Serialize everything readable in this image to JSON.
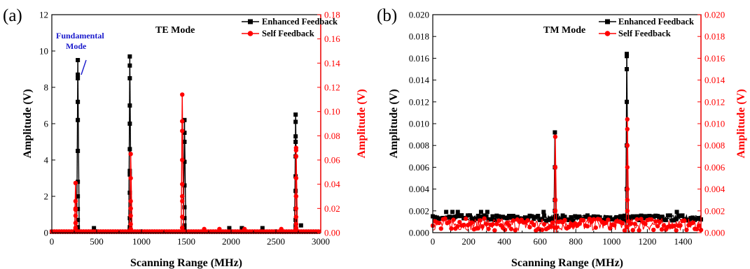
{
  "colors": {
    "left_axis": "#000000",
    "right_axis": "#ff0000",
    "annotation": "#1a1acc"
  },
  "chart_data": [
    {
      "type": "line",
      "panel_label": "(a)",
      "mode_title": "TE Mode",
      "annotation": {
        "line1": "Fundamental",
        "line2": "Mode"
      },
      "xlabel": "Scanning Range (MHz)",
      "ylabel_left": "Amplitude (V)",
      "ylabel_right": "Amplitude (V)",
      "xlim": [
        0,
        3000
      ],
      "ylim_left": [
        0,
        12
      ],
      "ylim_right": [
        0,
        0.18
      ],
      "xticks": [
        "0",
        "500",
        "1000",
        "1500",
        "2000",
        "2500",
        "3000"
      ],
      "yticks_left": [
        "0",
        "2",
        "4",
        "6",
        "8",
        "10",
        "12"
      ],
      "yticks_right": [
        "0.00",
        "0.02",
        "0.04",
        "0.06",
        "0.08",
        "0.10",
        "0.12",
        "0.14",
        "0.16",
        "0.18"
      ],
      "legend_position": "top-right",
      "series": [
        {
          "name": "Enhanced Feedback",
          "axis": "left",
          "color": "#000000",
          "marker": "square",
          "baseline": 0.05,
          "peaks": [
            {
              "x": 290,
              "points": [
                0.15,
                0.7,
                1.3,
                2.8,
                4.5,
                6.2,
                7.2,
                8.7,
                9.5,
                8.5,
                2.0,
                0.3
              ]
            },
            {
              "x": 870,
              "points": [
                0.2,
                0.8,
                2.2,
                3.4,
                4.6,
                6.0,
                7.0,
                8.5,
                9.2,
                9.7,
                3.2,
                0.3
              ]
            },
            {
              "x": 1480,
              "points": [
                0.2,
                0.8,
                1.4,
                2.6,
                3.9,
                5.5,
                6.2,
                5.0,
                0.4
              ]
            },
            {
              "x": 2720,
              "points": [
                0.2,
                0.7,
                1.3,
                2.3,
                3.1,
                4.2,
                5.3,
                6.1,
                6.5,
                5.0,
                0.4
              ]
            }
          ],
          "extra_points": [
            {
              "x": 470,
              "y": 0.25
            },
            {
              "x": 1980,
              "y": 0.25
            },
            {
              "x": 2120,
              "y": 0.25
            },
            {
              "x": 2350,
              "y": 0.25
            },
            {
              "x": 2780,
              "y": 0.4
            }
          ]
        },
        {
          "name": "Self Feedback",
          "axis": "right",
          "color": "#ff0000",
          "marker": "circle",
          "baseline": 0.001,
          "peaks": [
            {
              "x": 265,
              "points": [
                0.003,
                0.008,
                0.014,
                0.019,
                0.026,
                0.041,
                0.02,
                0.004
              ]
            },
            {
              "x": 880,
              "points": [
                0.003,
                0.007,
                0.014,
                0.02,
                0.026,
                0.045,
                0.065,
                0.02,
                0.003
              ]
            },
            {
              "x": 1455,
              "points": [
                0.004,
                0.013,
                0.026,
                0.04,
                0.06,
                0.084,
                0.092,
                0.114,
                0.03,
                0.004
              ]
            },
            {
              "x": 2725,
              "points": [
                0.003,
                0.007,
                0.013,
                0.02,
                0.03,
                0.045,
                0.063,
                0.07,
                0.068,
                0.03,
                0.004
              ]
            }
          ],
          "extra_points": [
            {
              "x": 1700,
              "y": 0.003
            },
            {
              "x": 1870,
              "y": 0.003
            },
            {
              "x": 2150,
              "y": 0.003
            },
            {
              "x": 2560,
              "y": 0.003
            }
          ]
        }
      ]
    },
    {
      "type": "line",
      "panel_label": "(b)",
      "mode_title": "TM Mode",
      "xlabel": "Scanning Range (MHz)",
      "ylabel_left": "Amplitude (V)",
      "ylabel_right": "Amplitude (V)",
      "xlim": [
        0,
        1500
      ],
      "ylim_left": [
        0,
        0.02
      ],
      "ylim_right": [
        0,
        0.02
      ],
      "xticks": [
        "0",
        "200",
        "400",
        "600",
        "800",
        "1000",
        "1200",
        "1400"
      ],
      "yticks_left": [
        "0.000",
        "0.002",
        "0.004",
        "0.006",
        "0.008",
        "0.010",
        "0.012",
        "0.014",
        "0.016",
        "0.018",
        "0.020"
      ],
      "yticks_right": [
        "0.000",
        "0.002",
        "0.004",
        "0.006",
        "0.008",
        "0.010",
        "0.012",
        "0.014",
        "0.016",
        "0.018",
        "0.020"
      ],
      "legend_position": "top-right",
      "series": [
        {
          "name": "Enhanced Feedback",
          "axis": "left",
          "color": "#000000",
          "marker": "square",
          "noise_band": [
            0.0011,
            0.0016
          ],
          "peaks": [
            {
              "x": 683,
              "points": [
                0.003,
                0.006,
                0.0092,
                0.002
              ]
            },
            {
              "x": 1085,
              "points": [
                0.004,
                0.008,
                0.012,
                0.015,
                0.0162,
                0.0164,
                0.004
              ]
            }
          ],
          "extra_points": [
            {
              "x": 75,
              "y": 0.0019
            },
            {
              "x": 110,
              "y": 0.0019
            },
            {
              "x": 140,
              "y": 0.0019
            },
            {
              "x": 270,
              "y": 0.0019
            },
            {
              "x": 305,
              "y": 0.0019
            },
            {
              "x": 620,
              "y": 0.0019
            },
            {
              "x": 1365,
              "y": 0.0019
            }
          ]
        },
        {
          "name": "Self Feedback",
          "axis": "right",
          "color": "#ff0000",
          "marker": "circle",
          "noise_band": [
            0.0002,
            0.0013
          ],
          "peaks": [
            {
              "x": 685,
              "points": [
                0.003,
                0.006,
                0.0088,
                0.002
              ]
            },
            {
              "x": 1088,
              "points": [
                0.002,
                0.004,
                0.006,
                0.008,
                0.0095,
                0.0104,
                0.003
              ]
            }
          ],
          "extra_points": []
        }
      ]
    }
  ]
}
